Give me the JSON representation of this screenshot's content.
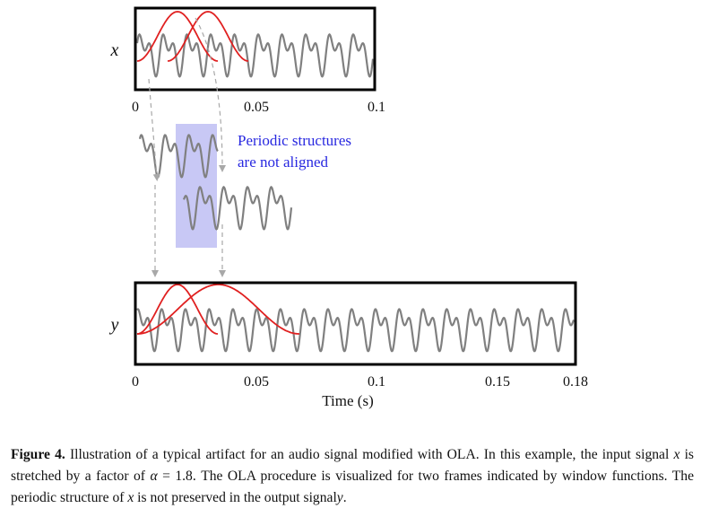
{
  "figure": {
    "signal_x": {
      "label": "x",
      "ticks": [
        "0",
        "0.05",
        "0.1"
      ]
    },
    "signal_y": {
      "label": "y",
      "ticks": [
        "0",
        "0.05",
        "0.1",
        "0.15",
        "0.18"
      ],
      "xlabel": "Time (s)"
    },
    "annotation": {
      "line1": "Periodic structures",
      "line2": "are not aligned"
    },
    "colors": {
      "waveform": "#808080",
      "window": "#e02020",
      "highlight": "#c8c8f5",
      "annotation_text": "#2828e0",
      "arrow": "#a8a8a8",
      "frame": "#000000"
    }
  },
  "caption": {
    "label": "Figure 4.",
    "text_1": "Illustration of a typical artifact for an audio signal modified with OLA. In this example, the input signal",
    "var_x": "x",
    "text_2": "is stretched by a factor of",
    "alpha": "α",
    "text_3": "= 1.8. The OLA procedure is visualized for two frames indicated by window functions. The periodic structure of",
    "var_x2": "x",
    "text_4": "is not preserved in the output signal",
    "var_y": "y",
    "text_5": "."
  }
}
